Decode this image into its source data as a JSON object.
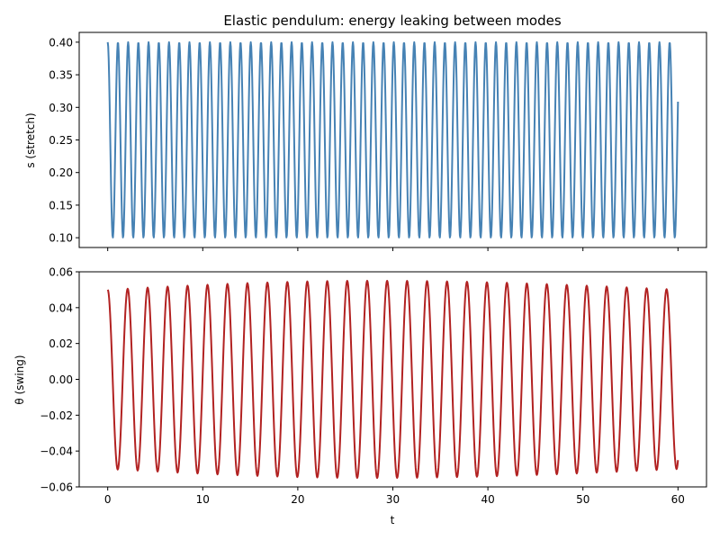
{
  "chart_data": [
    {
      "type": "line",
      "title": "Elastic pendulum: energy leaking between modes",
      "xlabel": "",
      "ylabel": "s (stretch)",
      "xlim": [
        -3,
        63
      ],
      "ylim": [
        0.085,
        0.415
      ],
      "x_ticks": [
        0,
        10,
        20,
        30,
        40,
        50,
        60
      ],
      "x_tick_labels_visible": false,
      "y_ticks": [
        0.1,
        0.15,
        0.2,
        0.25,
        0.3,
        0.35,
        0.4
      ],
      "y_tick_labels": [
        "0.10",
        "0.15",
        "0.20",
        "0.25",
        "0.30",
        "0.35",
        "0.40"
      ],
      "grid": false,
      "series": [
        {
          "color": "#4682b4",
          "t_range": [
            0,
            60
          ],
          "sampling": "every 0.05 in t",
          "model": "oscillation between 0.10 and 0.40, period ~1.075, starting at maximum",
          "center": 0.25,
          "amplitude": 0.15,
          "period": 1.075
        }
      ]
    },
    {
      "type": "line",
      "title": "",
      "xlabel": "t",
      "ylabel": "θ (swing)",
      "xlim": [
        -3,
        63
      ],
      "ylim": [
        -0.06,
        0.06
      ],
      "x_ticks": [
        0,
        10,
        20,
        30,
        40,
        50,
        60
      ],
      "x_tick_labels": [
        "0",
        "10",
        "20",
        "30",
        "40",
        "50",
        "60"
      ],
      "y_ticks": [
        -0.06,
        -0.04,
        -0.02,
        0.0,
        0.02,
        0.04,
        0.06
      ],
      "y_tick_labels": [
        "−0.06",
        "−0.04",
        "−0.02",
        "0.00",
        "0.02",
        "0.04",
        "0.06"
      ],
      "grid": false,
      "series": [
        {
          "color": "#b22222",
          "t_range": [
            0,
            60
          ],
          "sampling": "every 0.05 in t",
          "model": "oscillation with period ~2.1, amplitude 0.050 at t=0 rising to ~0.055 near t=28 then back to 0.050 at t=60",
          "period": 2.1,
          "amplitude_start": 0.05,
          "amplitude_peak": 0.055,
          "amplitude_peak_t": 28,
          "amplitude_end": 0.05
        }
      ]
    }
  ]
}
